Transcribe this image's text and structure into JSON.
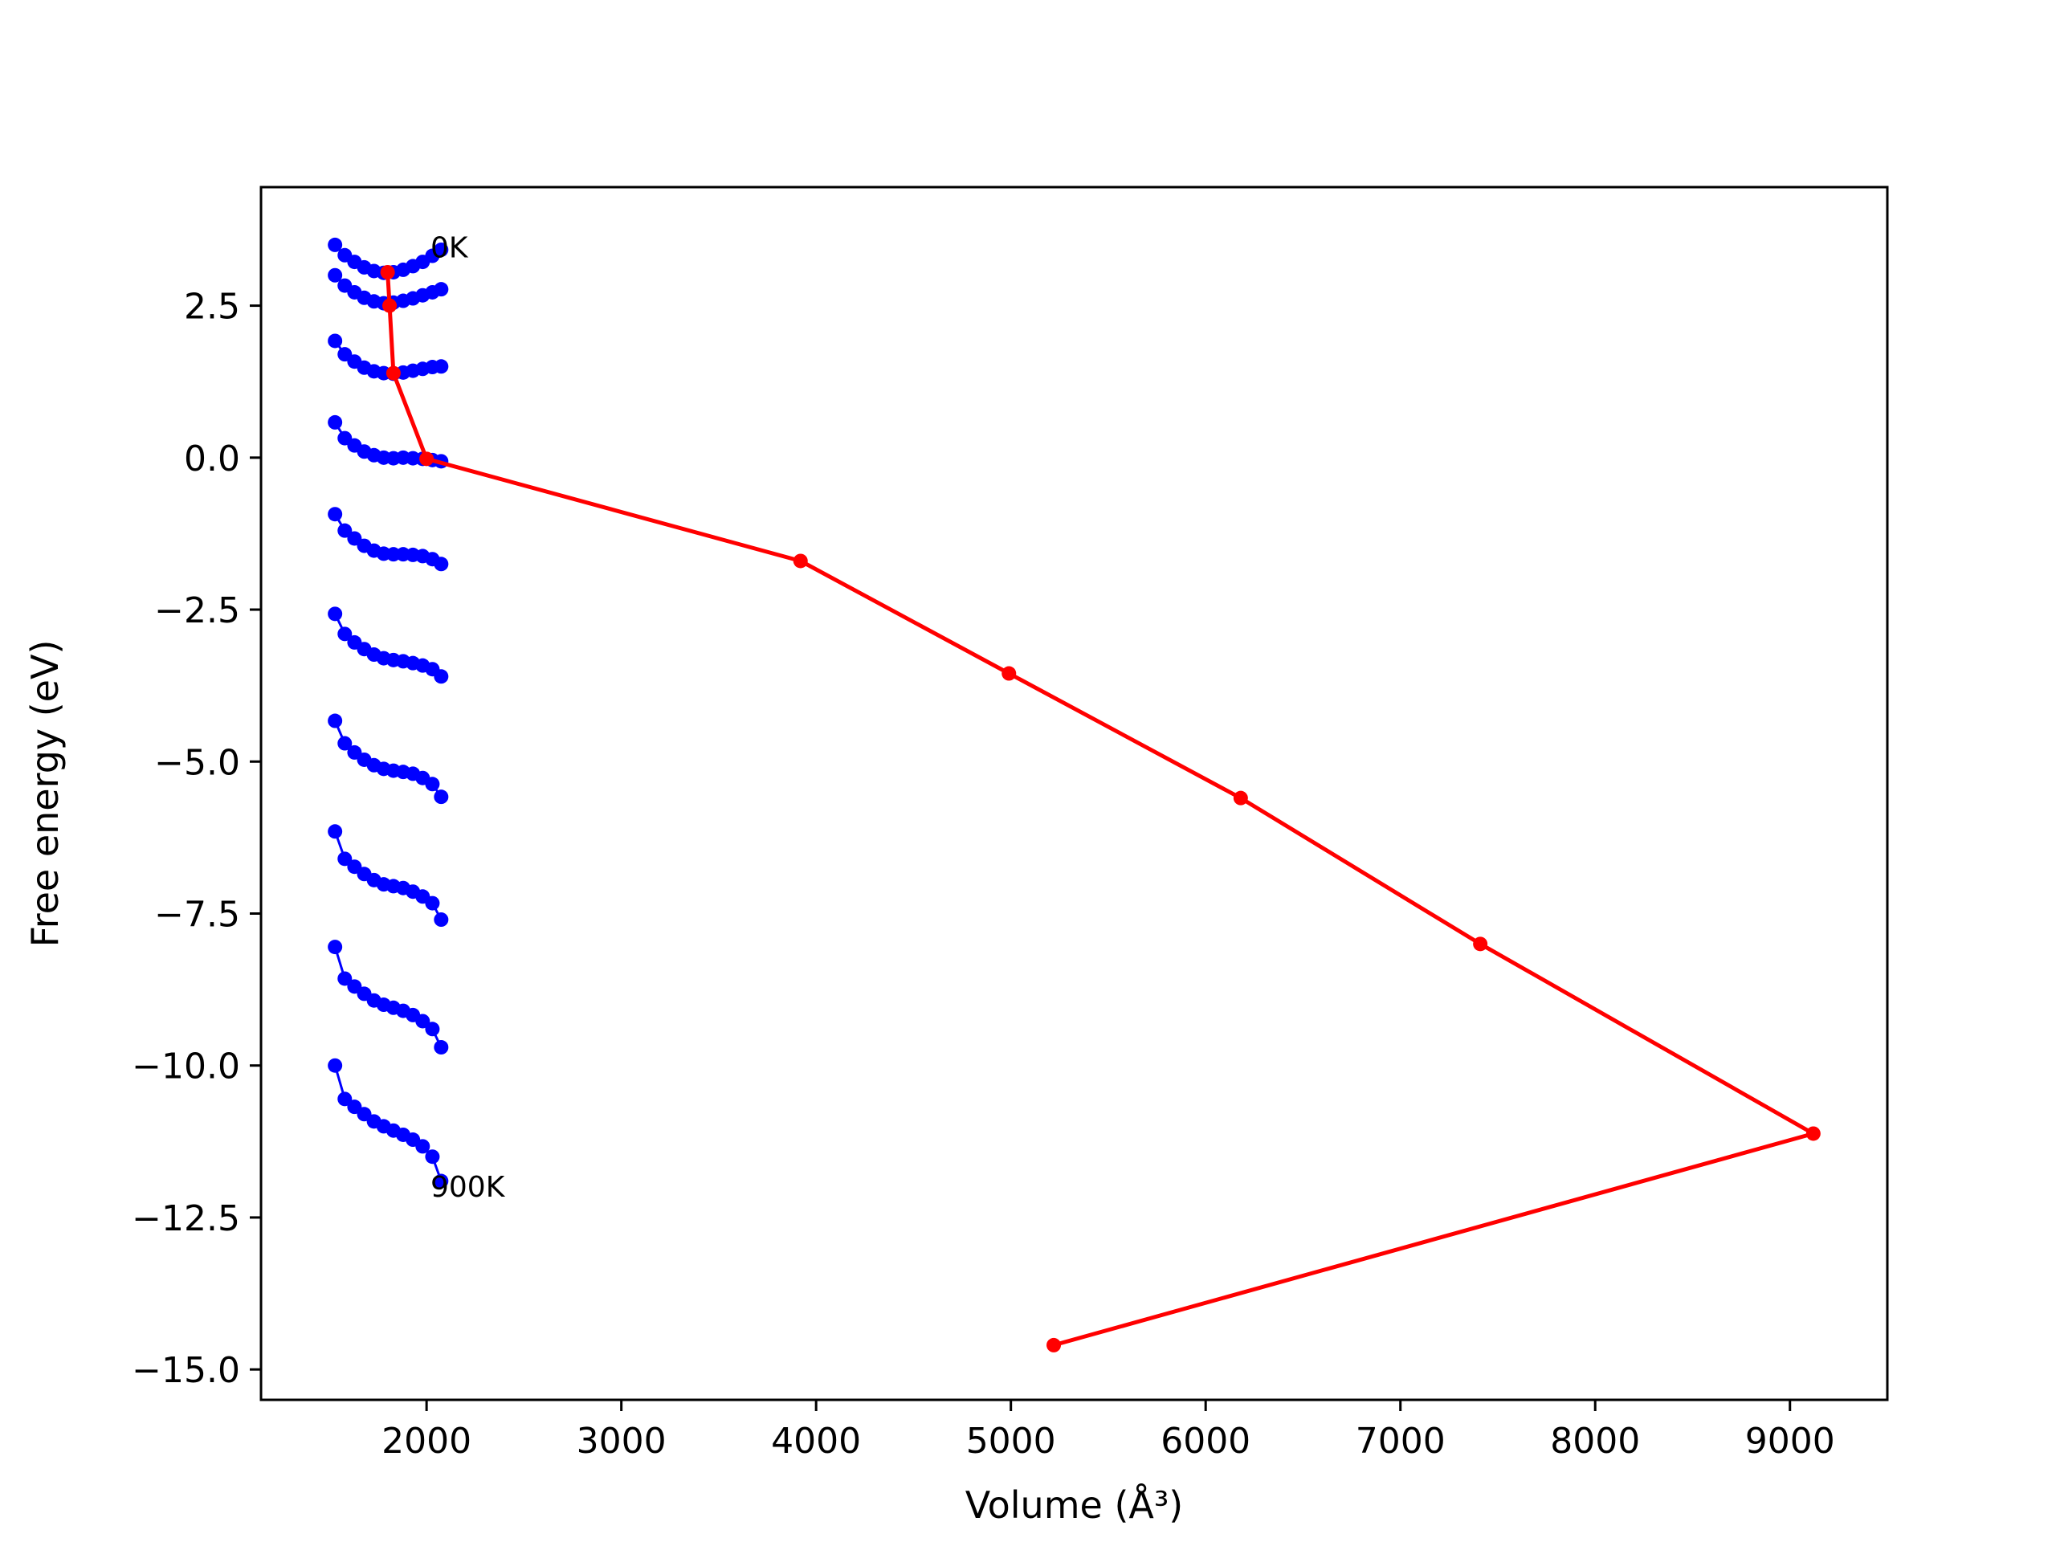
{
  "chart_data": {
    "type": "line",
    "xlabel": "Volume (Å³)",
    "ylabel": "Free energy (eV)",
    "xlim": [
      1150,
      9500
    ],
    "ylim": [
      -15.5,
      4.45
    ],
    "xticks": [
      2000,
      3000,
      4000,
      5000,
      6000,
      7000,
      8000,
      9000
    ],
    "yticks": [
      2.5,
      0.0,
      -2.5,
      -5.0,
      -7.5,
      -10.0,
      -12.5,
      -15.0
    ],
    "xtick_labels": [
      "2000",
      "3000",
      "4000",
      "5000",
      "6000",
      "7000",
      "8000",
      "9000"
    ],
    "ytick_labels": [
      "2.5",
      "0.0",
      "−2.5",
      "−5.0",
      "−7.5",
      "−10.0",
      "−12.5",
      "−15.0"
    ],
    "grid": false,
    "legend": "none",
    "colors": {
      "points": "#0000ff",
      "fit": "#0000ff",
      "minimum_path": "#ff0000"
    },
    "annotations": [
      {
        "text": "0K",
        "x": 2020,
        "y": 3.45
      },
      {
        "text": "900K",
        "x": 2020,
        "y": -12.0
      }
    ],
    "volume_points": [
      1530,
      1580,
      1630,
      1680,
      1730,
      1780,
      1830,
      1880,
      1930,
      1980,
      2030,
      2075
    ],
    "isotherms": [
      {
        "values": [
          3.5,
          3.33,
          3.22,
          3.13,
          3.07,
          3.04,
          3.05,
          3.09,
          3.15,
          3.22,
          3.32,
          3.42
        ]
      },
      {
        "values": [
          3.0,
          2.83,
          2.72,
          2.63,
          2.57,
          2.54,
          2.55,
          2.58,
          2.62,
          2.67,
          2.72,
          2.77
        ]
      },
      {
        "values": [
          1.92,
          1.7,
          1.58,
          1.48,
          1.42,
          1.39,
          1.38,
          1.4,
          1.43,
          1.46,
          1.49,
          1.5
        ]
      },
      {
        "values": [
          0.58,
          0.32,
          0.2,
          0.1,
          0.04,
          0.0,
          -0.01,
          0.0,
          -0.01,
          -0.02,
          -0.04,
          -0.06
        ]
      },
      {
        "values": [
          -0.93,
          -1.2,
          -1.33,
          -1.45,
          -1.53,
          -1.58,
          -1.59,
          -1.59,
          -1.6,
          -1.62,
          -1.67,
          -1.75
        ]
      },
      {
        "values": [
          -2.57,
          -2.9,
          -3.04,
          -3.15,
          -3.24,
          -3.3,
          -3.33,
          -3.35,
          -3.38,
          -3.42,
          -3.48,
          -3.6
        ]
      },
      {
        "values": [
          -4.33,
          -4.7,
          -4.85,
          -4.97,
          -5.06,
          -5.12,
          -5.15,
          -5.17,
          -5.2,
          -5.27,
          -5.37,
          -5.58
        ]
      },
      {
        "values": [
          -6.15,
          -6.6,
          -6.73,
          -6.85,
          -6.95,
          -7.02,
          -7.05,
          -7.08,
          -7.14,
          -7.22,
          -7.33,
          -7.6
        ]
      },
      {
        "values": [
          -8.05,
          -8.57,
          -8.7,
          -8.82,
          -8.93,
          -9.0,
          -9.05,
          -9.1,
          -9.17,
          -9.27,
          -9.4,
          -9.7
        ]
      },
      {
        "values": [
          -10.0,
          -10.55,
          -10.68,
          -10.8,
          -10.92,
          -11.0,
          -11.07,
          -11.14,
          -11.22,
          -11.33,
          -11.5,
          -11.9
        ]
      }
    ],
    "minimum_path": {
      "x": [
        1800,
        1810,
        1830,
        2000,
        3920,
        4990,
        6180,
        7410,
        9120,
        5220
      ],
      "y": [
        3.05,
        2.5,
        1.39,
        -0.02,
        -1.7,
        -3.55,
        -5.6,
        -8.0,
        -11.12,
        -14.6
      ]
    }
  }
}
